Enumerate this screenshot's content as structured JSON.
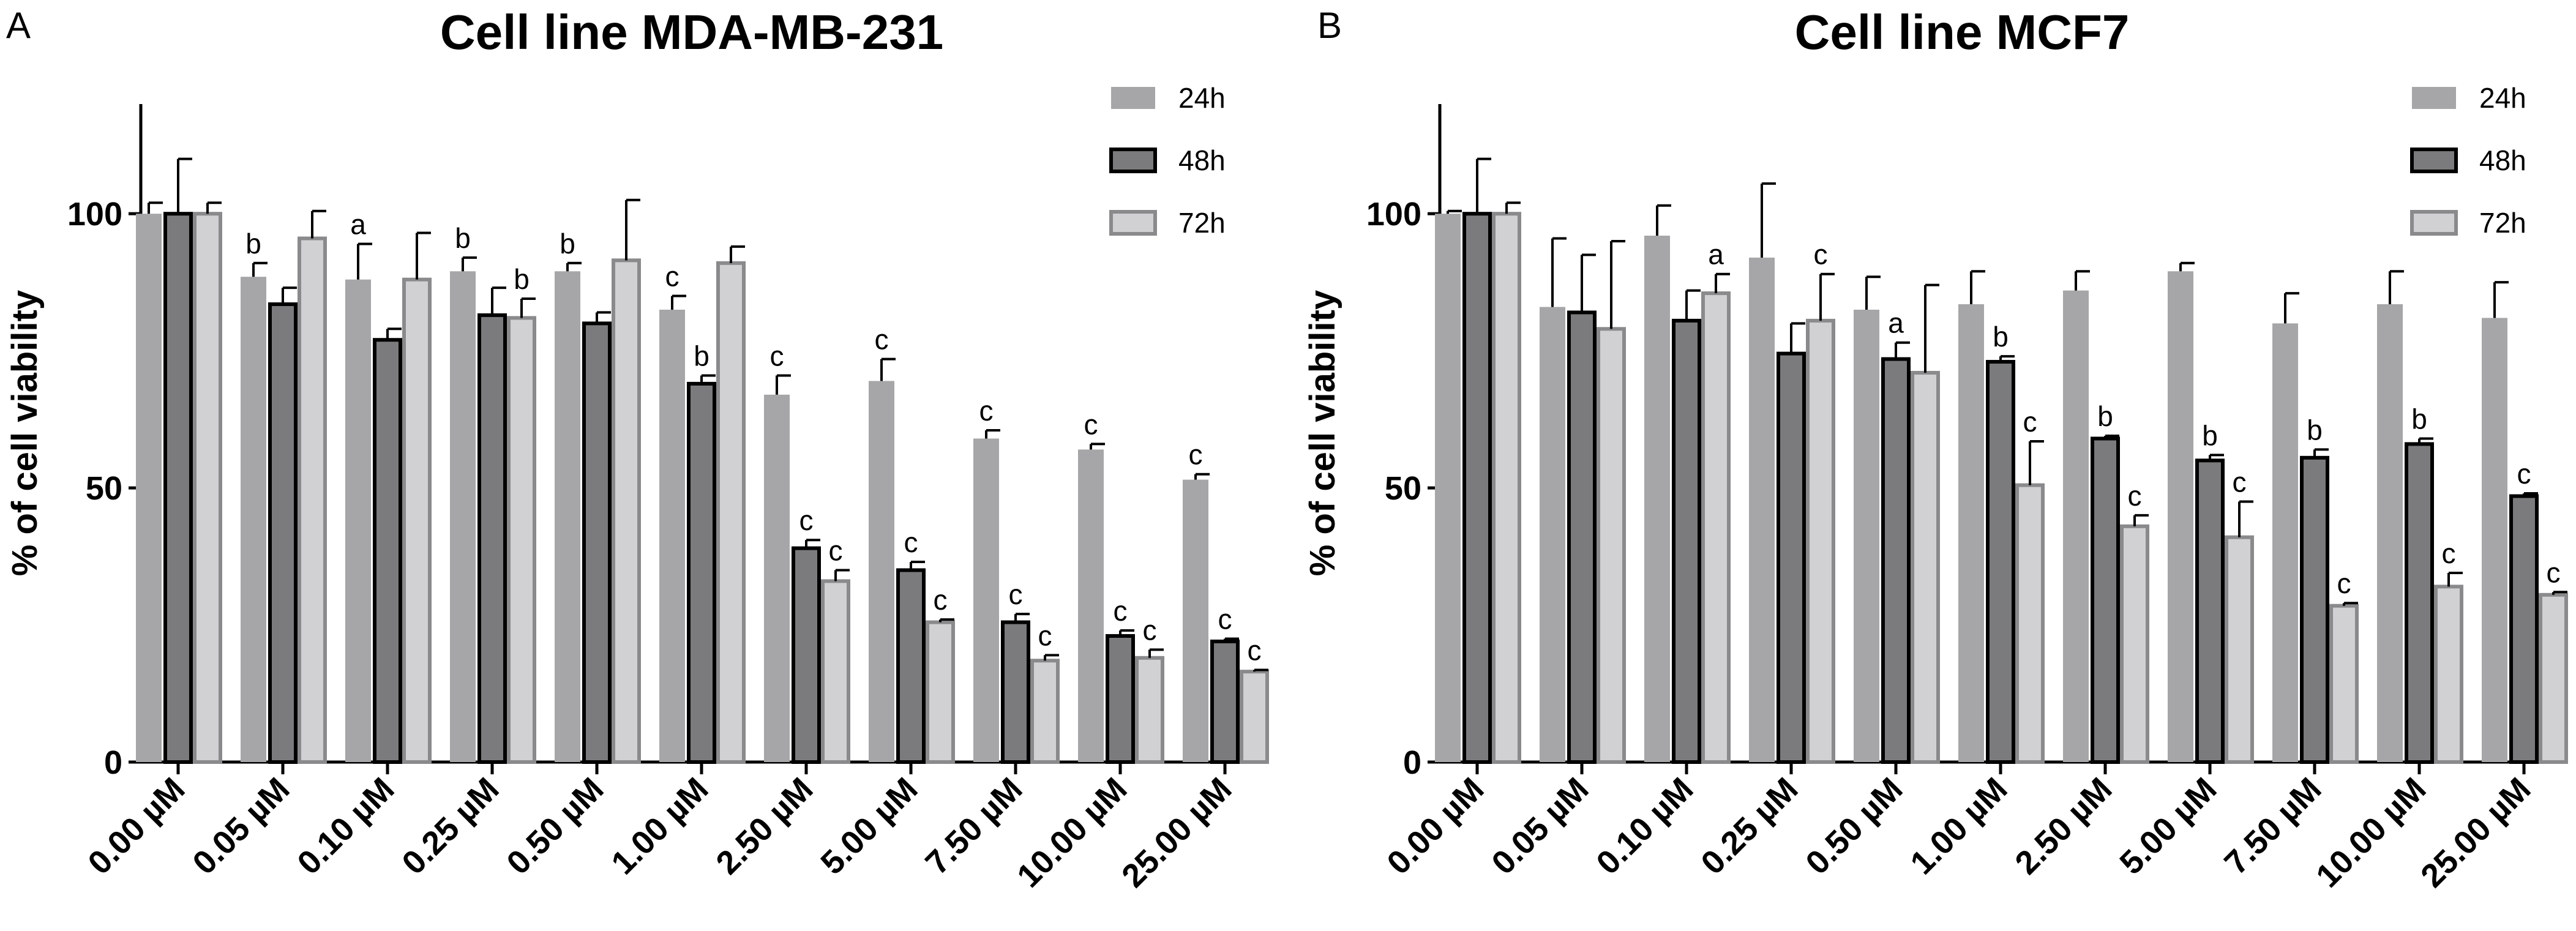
{
  "chart_data": [
    {
      "panel": "A",
      "type": "bar",
      "title": "Cell line MDA-MB-231",
      "xlabel": "",
      "ylabel": "% of cell viability",
      "ylim": [
        0,
        120
      ],
      "yticks": [
        0,
        50,
        100
      ],
      "grid": false,
      "legend_position": "top-right",
      "categories": [
        "0.00 µM",
        "0.05 µM",
        "0.10 µM",
        "0.25 µM",
        "0.50 µM",
        "1.00 µM",
        "2.50 µM",
        "5.00 µM",
        "7.50 µM",
        "10.00 µM",
        "25.00 µM"
      ],
      "series": [
        {
          "name": "24h",
          "color": "#a6a6a8",
          "outline": false,
          "values": [
            100,
            88.5,
            88,
            89.5,
            89.5,
            82.5,
            67,
            69.5,
            59,
            57,
            51.5
          ],
          "errors": [
            2,
            2.5,
            6.5,
            2.5,
            1.5,
            2.5,
            3.5,
            4,
            1.5,
            1,
            1
          ],
          "labels": [
            "",
            "b",
            "a",
            "b",
            "b",
            "c",
            "c",
            "c",
            "c",
            "c",
            "c"
          ]
        },
        {
          "name": "48h",
          "color": "#7b7b7d",
          "outline": true,
          "values": [
            100,
            83.5,
            77,
            81.5,
            80,
            69,
            39,
            35,
            25.5,
            23,
            22
          ],
          "errors": [
            10,
            3,
            2,
            5,
            2,
            1.5,
            1.5,
            1.5,
            1.5,
            1,
            0.5
          ],
          "labels": [
            "",
            "",
            "",
            "",
            "",
            "b",
            "c",
            "c",
            "c",
            "c",
            "c"
          ]
        },
        {
          "name": "72h",
          "color": "#d1d1d3",
          "outline": true,
          "values": [
            100,
            95.5,
            88,
            81,
            91.5,
            91,
            33,
            25.5,
            18.5,
            19,
            16.5
          ],
          "errors": [
            2,
            5,
            8.5,
            3.5,
            11,
            3,
            2,
            0.5,
            1,
            1.5,
            0.3
          ],
          "labels": [
            "",
            "",
            "",
            "b",
            "",
            "",
            "c",
            "c",
            "c",
            "c",
            "c"
          ]
        }
      ]
    },
    {
      "panel": "B",
      "type": "bar",
      "title": "Cell line MCF7",
      "xlabel": "",
      "ylabel": "% of cell viability",
      "ylim": [
        0,
        120
      ],
      "yticks": [
        0,
        50,
        100
      ],
      "grid": false,
      "legend_position": "top-right",
      "categories": [
        "0.00 µM",
        "0.05 µM",
        "0.10 µM",
        "0.25 µM",
        "0.50 µM",
        "1.00 µM",
        "2.50 µM",
        "5.00 µM",
        "7.50 µM",
        "10.00 µM",
        "25.00 µM"
      ],
      "series": [
        {
          "name": "24h",
          "color": "#a6a6a8",
          "outline": false,
          "values": [
            100,
            83,
            96,
            92,
            82.5,
            83.5,
            86,
            89.5,
            80,
            83.5,
            81
          ],
          "errors": [
            0.5,
            12.5,
            5.5,
            13.5,
            6,
            6,
            3.5,
            1.5,
            5.5,
            6,
            6.5
          ],
          "labels": [
            "",
            "",
            "",
            "",
            "",
            "",
            "",
            "",
            "",
            "",
            ""
          ]
        },
        {
          "name": "48h",
          "color": "#7b7b7d",
          "outline": true,
          "values": [
            100,
            82,
            80.5,
            74.5,
            73.5,
            73,
            59,
            55,
            55.5,
            58,
            48.5
          ],
          "errors": [
            10,
            10.5,
            5.5,
            5.5,
            3,
            1,
            0.5,
            1,
            1.5,
            1,
            0.5
          ],
          "labels": [
            "",
            "",
            "",
            "",
            "a",
            "b",
            "b",
            "b",
            "b",
            "b",
            "c"
          ]
        },
        {
          "name": "72h",
          "color": "#d1d1d3",
          "outline": true,
          "values": [
            100,
            79,
            85.5,
            80.5,
            71,
            50.5,
            43,
            41,
            28.5,
            32,
            30.5
          ],
          "errors": [
            2,
            16,
            3.5,
            8.5,
            16,
            8,
            2,
            6.5,
            0.5,
            2.5,
            0.5
          ],
          "labels": [
            "",
            "",
            "a",
            "c",
            "",
            "c",
            "c",
            "c",
            "c",
            "c",
            "c"
          ]
        }
      ]
    }
  ]
}
